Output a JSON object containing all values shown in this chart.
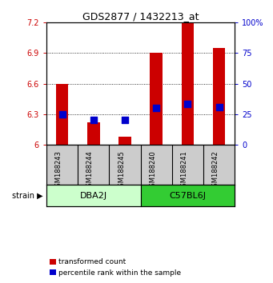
{
  "title": "GDS2877 / 1432213_at",
  "samples": [
    "GSM188243",
    "GSM188244",
    "GSM188245",
    "GSM188240",
    "GSM188241",
    "GSM188242"
  ],
  "transformed_counts": [
    6.6,
    6.22,
    6.08,
    6.9,
    7.2,
    6.95
  ],
  "percentile_ranks": [
    25,
    20,
    20,
    30,
    33,
    31
  ],
  "baseline": 6.0,
  "ylim_left": [
    6.0,
    7.2
  ],
  "ylim_right": [
    0,
    100
  ],
  "yticks_left": [
    6.0,
    6.3,
    6.6,
    6.9,
    7.2
  ],
  "ytick_labels_left": [
    "6",
    "6.3",
    "6.6",
    "6.9",
    "7.2"
  ],
  "yticks_right": [
    0,
    25,
    50,
    75,
    100
  ],
  "ytick_labels_right": [
    "0",
    "25",
    "50",
    "75",
    "100%"
  ],
  "bar_color": "#CC0000",
  "dot_color": "#0000CC",
  "bar_width": 0.4,
  "dot_size": 35,
  "bg_color": "#ffffff",
  "sample_bg": "#cccccc",
  "left_tick_color": "#CC0000",
  "right_tick_color": "#0000CC",
  "dba2j_color": "#ccffcc",
  "c57bl6j_color": "#33cc33",
  "group_border_color": "#000000",
  "title_fontsize": 9,
  "tick_fontsize": 7,
  "sample_fontsize": 6,
  "group_fontsize": 8,
  "legend_fontsize": 6.5
}
